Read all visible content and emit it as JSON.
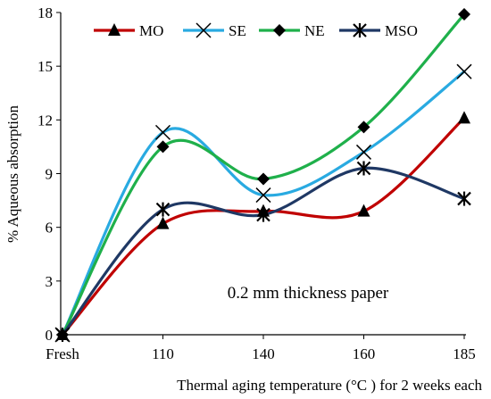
{
  "chart_data": {
    "type": "line",
    "smooth": true,
    "categories": [
      "Fresh",
      "110",
      "140",
      "160",
      "185"
    ],
    "xlabel": "Thermal aging temperature (°C ) for 2 weeks each",
    "ylabel": "% Aqueous absorption",
    "ylim": [
      0,
      18
    ],
    "yticks": [
      0,
      3,
      6,
      9,
      12,
      15,
      18
    ],
    "grid": false,
    "legend_position": "top",
    "annotation": "0.2 mm thickness paper",
    "series": [
      {
        "name": "MO",
        "color": "#c00000",
        "marker": "triangle",
        "values": [
          0,
          6.2,
          6.9,
          6.9,
          12.1
        ]
      },
      {
        "name": "SE",
        "color": "#29aae1",
        "marker": "x",
        "values": [
          0,
          11.3,
          7.8,
          10.2,
          14.7
        ]
      },
      {
        "name": "NE",
        "color": "#1fb04b",
        "marker": "diamond",
        "values": [
          0,
          10.5,
          8.7,
          11.6,
          17.9
        ]
      },
      {
        "name": "MSO",
        "color": "#1f3864",
        "marker": "asterisk",
        "values": [
          0,
          7.0,
          6.7,
          9.3,
          7.6
        ]
      }
    ]
  }
}
